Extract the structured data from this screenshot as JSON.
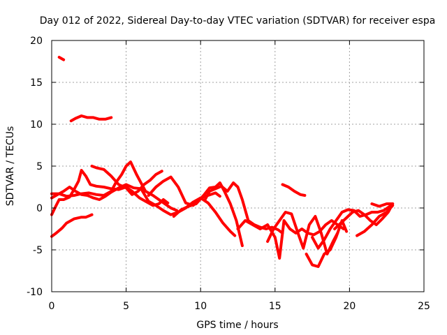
{
  "chart_data": {
    "type": "line",
    "title": "Day 012 of 2022, Sidereal Day-to-day VTEC variation (SDTVAR) for receiver espa",
    "xlabel": "GPS time / hours",
    "ylabel": "SDTVAR / TECUs",
    "xlim": [
      0,
      25
    ],
    "ylim": [
      -10,
      20
    ],
    "xticks": [
      0,
      5,
      10,
      15,
      20,
      25
    ],
    "yticks": [
      -10,
      -5,
      0,
      5,
      10,
      15,
      20
    ],
    "grid": true,
    "color": "#ff0000",
    "series": [
      {
        "name": "s1",
        "x": [
          0.5,
          0.8
        ],
        "y": [
          18.0,
          17.7
        ]
      },
      {
        "name": "s2",
        "x": [
          1.3,
          1.6,
          2.0,
          2.4,
          2.8,
          3.2,
          3.6,
          4.0
        ],
        "y": [
          10.4,
          10.7,
          11.0,
          10.8,
          10.8,
          10.6,
          10.6,
          10.8
        ]
      },
      {
        "name": "s3",
        "x": [
          0.0,
          0.3,
          0.7,
          1.0,
          1.5,
          2.0,
          2.3,
          2.7
        ],
        "y": [
          -3.4,
          -3.0,
          -2.4,
          -1.8,
          -1.3,
          -1.1,
          -1.1,
          -0.8
        ]
      },
      {
        "name": "s4",
        "x": [
          0.0,
          0.3,
          0.5,
          0.8,
          1.2,
          1.5,
          1.8,
          2.0,
          2.3,
          2.6,
          3.0,
          3.5,
          4.0,
          4.5,
          5.0,
          5.4,
          5.9,
          6.3,
          6.8,
          7.2,
          7.5,
          7.8
        ],
        "y": [
          -0.8,
          0.3,
          1.0,
          1.0,
          1.3,
          2.2,
          3.2,
          4.5,
          3.8,
          2.8,
          2.6,
          2.5,
          2.3,
          2.2,
          2.5,
          2.0,
          1.2,
          0.8,
          0.3,
          0.5,
          1.0,
          0.6
        ]
      },
      {
        "name": "s5",
        "x": [
          0.0,
          0.5,
          1.0,
          1.5,
          2.0,
          2.5,
          3.0,
          3.5,
          4.0,
          4.3,
          4.7,
          5.0,
          5.3,
          5.7,
          6.0,
          6.3,
          6.8,
          7.2,
          7.6,
          8.0,
          8.4
        ],
        "y": [
          1.7,
          1.7,
          1.4,
          1.5,
          1.7,
          1.8,
          1.6,
          1.5,
          2.0,
          3.0,
          4.0,
          5.0,
          5.5,
          4.0,
          3.0,
          2.0,
          1.5,
          1.0,
          0.5,
          0.0,
          -0.3
        ]
      },
      {
        "name": "s6",
        "x": [
          0.0,
          0.4,
          0.8,
          1.2,
          1.6,
          2.0,
          2.4,
          2.8,
          3.2,
          3.6,
          4.0,
          4.5,
          5.0,
          5.5,
          6.0,
          6.5,
          7.0,
          7.5,
          8.0,
          8.5,
          9.0,
          9.5,
          10.0,
          10.5,
          11.0,
          11.3
        ],
        "y": [
          1.2,
          1.6,
          2.0,
          2.5,
          2.0,
          1.6,
          1.5,
          1.2,
          1.0,
          1.4,
          1.9,
          2.4,
          2.8,
          2.4,
          2.3,
          0.8,
          0.3,
          -0.3,
          -0.8,
          -0.5,
          0.0,
          0.7,
          1.2,
          1.5,
          1.8,
          1.4
        ]
      },
      {
        "name": "s7",
        "x": [
          2.7,
          3.0,
          3.5,
          4.0,
          4.5,
          5.0,
          5.4,
          5.8,
          6.2,
          6.6,
          7.0,
          7.4
        ],
        "y": [
          5.0,
          4.8,
          4.6,
          3.8,
          2.8,
          2.4,
          1.6,
          2.0,
          2.8,
          3.3,
          4.0,
          4.4
        ]
      },
      {
        "name": "s8",
        "x": [
          6.5,
          7.0,
          7.5,
          8.0,
          8.5,
          9.0,
          9.5,
          10.0,
          10.5,
          11.0,
          11.5,
          12.0,
          12.3
        ],
        "y": [
          1.5,
          2.5,
          3.2,
          3.7,
          2.5,
          0.6,
          0.3,
          1.2,
          0.6,
          -0.5,
          -1.8,
          -2.8,
          -3.3
        ]
      },
      {
        "name": "s9",
        "x": [
          8.2,
          8.7,
          9.2,
          9.7,
          10.2,
          10.6,
          11.0,
          11.3,
          11.6,
          12.0,
          12.4,
          12.8
        ],
        "y": [
          -1.0,
          -0.2,
          0.2,
          0.5,
          1.5,
          2.4,
          2.5,
          3.0,
          2.0,
          0.5,
          -1.5,
          -4.5
        ]
      },
      {
        "name": "s10",
        "x": [
          10.3,
          10.6,
          11.0,
          11.4,
          11.8,
          12.2,
          12.5,
          12.8,
          13.2,
          13.6,
          14.0,
          14.4,
          14.8,
          15.2,
          15.5
        ],
        "y": [
          1.0,
          2.0,
          2.3,
          2.6,
          2.0,
          3.0,
          2.5,
          1.0,
          -1.5,
          -2.0,
          -2.3,
          -2.5,
          -2.3,
          -2.6,
          -3.0
        ]
      },
      {
        "name": "s11",
        "x": [
          12.5,
          13.0,
          13.5,
          14.0,
          14.5,
          15.0,
          15.3,
          15.6,
          16.0,
          16.4,
          16.8,
          17.2,
          17.6,
          18.0,
          18.4,
          18.8,
          19.2,
          19.6
        ],
        "y": [
          -2.5,
          -1.5,
          -2.0,
          -2.5,
          -2.0,
          -3.5,
          -6.0,
          -1.5,
          -2.5,
          -3.0,
          -2.5,
          -3.0,
          -3.2,
          -2.8,
          -2.0,
          -1.5,
          -2.0,
          -2.5
        ]
      },
      {
        "name": "s12",
        "x": [
          14.5,
          14.9,
          15.3,
          15.7,
          16.1,
          16.5,
          16.9,
          17.3,
          17.7,
          18.1,
          18.5,
          18.9,
          19.2
        ],
        "y": [
          -4.0,
          -2.5,
          -1.5,
          -0.5,
          -0.7,
          -2.8,
          -4.8,
          -2.0,
          -1.0,
          -3.0,
          -5.5,
          -4.0,
          -3.0
        ]
      },
      {
        "name": "s13",
        "x": [
          15.5,
          15.9,
          16.3,
          16.7,
          17.0
        ],
        "y": [
          2.8,
          2.5,
          2.0,
          1.6,
          1.5
        ]
      },
      {
        "name": "s14",
        "x": [
          17.1,
          17.5,
          17.9,
          18.3,
          18.7,
          19.1,
          19.5,
          19.8
        ],
        "y": [
          -5.5,
          -6.8,
          -7.0,
          -5.5,
          -5.0,
          -3.5,
          -1.5,
          -2.8
        ]
      },
      {
        "name": "s15",
        "x": [
          17.5,
          17.9,
          18.3,
          18.7,
          19.1,
          19.5,
          19.9,
          20.3,
          20.7,
          21.1,
          21.5,
          21.9,
          22.3,
          22.7
        ],
        "y": [
          -3.5,
          -4.8,
          -3.8,
          -2.5,
          -1.5,
          -0.5,
          -0.2,
          -0.3,
          -1.0,
          -0.8,
          -0.5,
          -0.5,
          -0.3,
          0.2
        ]
      },
      {
        "name": "s16",
        "x": [
          19.0,
          19.3,
          19.6,
          19.9,
          20.2,
          20.6,
          21.0,
          21.4,
          21.8,
          22.2,
          22.6,
          22.9
        ],
        "y": [
          -2.5,
          -2.0,
          -1.5,
          -1.0,
          -0.5,
          -0.3,
          -0.8,
          -1.5,
          -2.0,
          -1.3,
          -0.5,
          0.5
        ]
      },
      {
        "name": "s17",
        "x": [
          20.5,
          21.0,
          21.5,
          22.0,
          22.5,
          22.9
        ],
        "y": [
          -3.3,
          -2.8,
          -2.0,
          -1.0,
          -0.5,
          0.3
        ]
      },
      {
        "name": "s18",
        "x": [
          21.5,
          22.0,
          22.5,
          22.9
        ],
        "y": [
          0.5,
          0.2,
          0.5,
          0.5
        ]
      }
    ]
  }
}
